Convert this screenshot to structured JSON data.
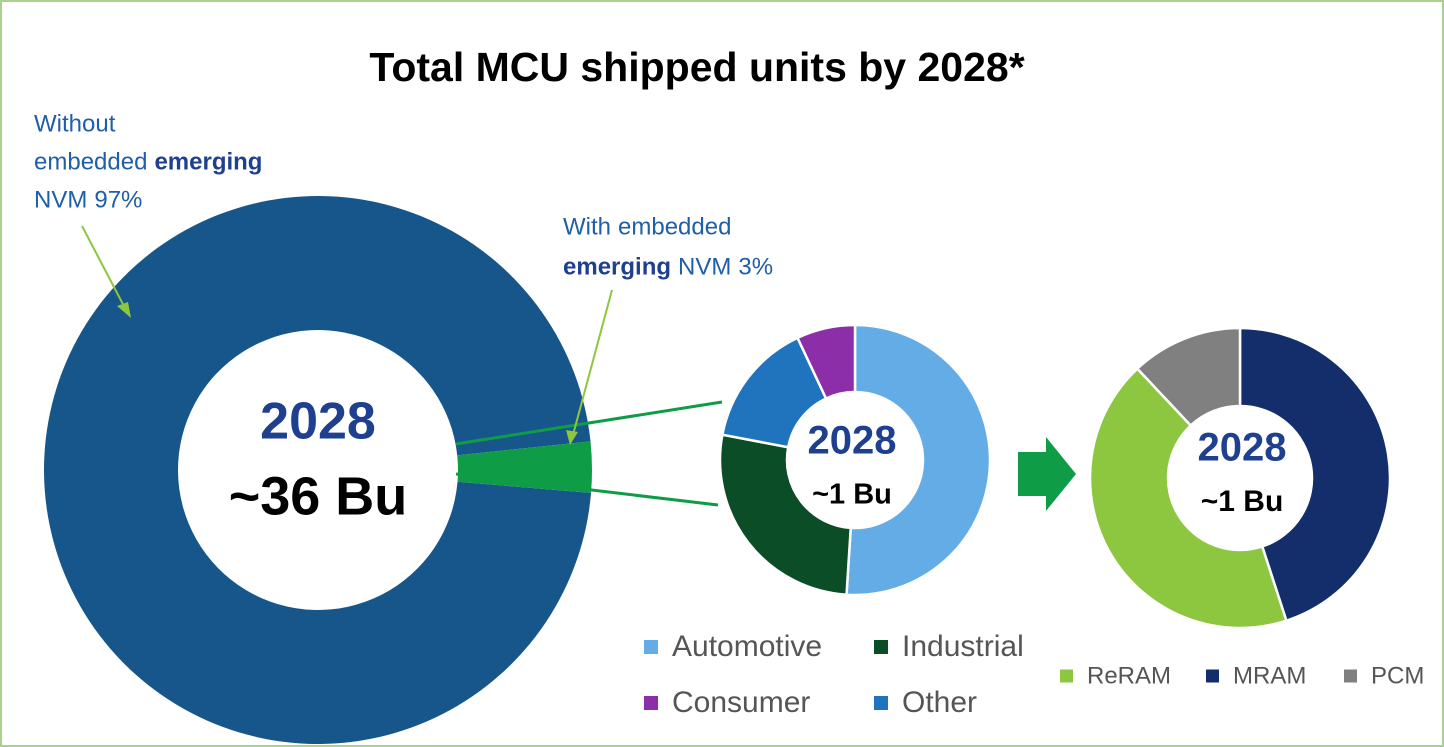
{
  "chart_data": [
    {
      "type": "donut",
      "title": "Total MCU shipped units by 2028*",
      "categories": [
        "Without embedded emerging NVM",
        "With embedded emerging NVM"
      ],
      "label_parts": [
        [
          "Without",
          "embedded",
          "emerging",
          "NVM"
        ],
        [
          "With",
          "embedded",
          "emerging",
          "NVM"
        ]
      ],
      "values": [
        97,
        3
      ],
      "value_labels": [
        "97%",
        "3%"
      ],
      "colors": [
        "#17568a",
        "#0e9c47"
      ],
      "center_labels": [
        "2028",
        "~36 Bu"
      ]
    },
    {
      "type": "donut",
      "categories": [
        "Automotive",
        "Industrial",
        "Other",
        "Consumer"
      ],
      "values": [
        51,
        27,
        15,
        7
      ],
      "colors": [
        "#64ace6",
        "#0a4d26",
        "#1f74bd",
        "#8c2ea8"
      ],
      "center_labels": [
        "2028",
        "~1 Bu"
      ]
    },
    {
      "type": "donut",
      "categories": [
        "MRAM",
        "ReRAM",
        "PCM"
      ],
      "values": [
        45,
        43,
        12
      ],
      "colors": [
        "#142e6b",
        "#8dc63f",
        "#808080"
      ],
      "center_labels": [
        "2028",
        "~1 Bu"
      ]
    }
  ]
}
